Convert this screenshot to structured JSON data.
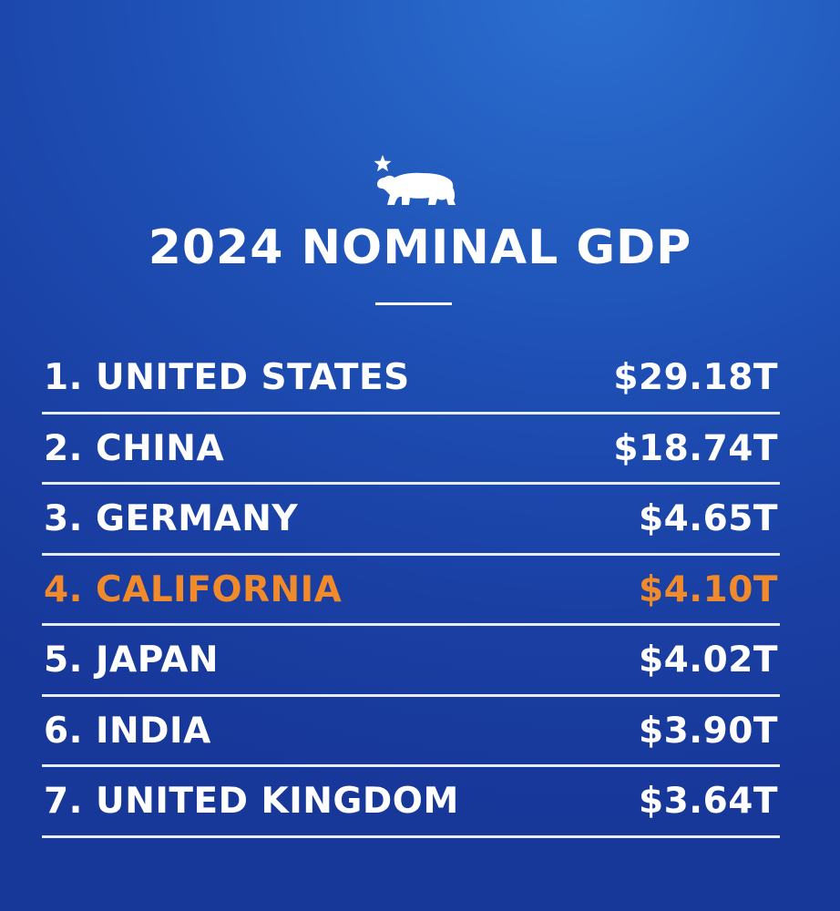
{
  "logo": {
    "icon": "california-bear-with-star-icon",
    "color": "#ffffff"
  },
  "title": "2024 NOMINAL GDP",
  "colors": {
    "background": "#1e4fb4",
    "text": "#ffffff",
    "highlight": "#f08a2a"
  },
  "rankings": [
    {
      "name": "1. UNITED STATES",
      "value": "$29.18T",
      "highlight": false
    },
    {
      "name": "2. CHINA",
      "value": "$18.74T",
      "highlight": false
    },
    {
      "name": "3. GERMANY",
      "value": "$4.65T",
      "highlight": false
    },
    {
      "name": "4. CALIFORNIA",
      "value": "$4.10T",
      "highlight": true
    },
    {
      "name": "5. JAPAN",
      "value": "$4.02T",
      "highlight": false
    },
    {
      "name": "6. INDIA",
      "value": "$3.90T",
      "highlight": false
    },
    {
      "name": "7. UNITED KINGDOM",
      "value": "$3.64T",
      "highlight": false
    }
  ]
}
